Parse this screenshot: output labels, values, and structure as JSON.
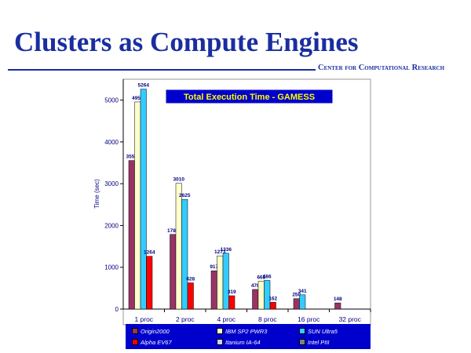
{
  "slide": {
    "title": "Clusters as Compute Engines",
    "org": "Center for Computational Research"
  },
  "chart_data": {
    "type": "bar",
    "title": "Total Execution Time - GAMESS",
    "xlabel": "",
    "ylabel": "Time (sec)",
    "ylim": [
      0,
      5500
    ],
    "yticks": [
      "0",
      "1000",
      "2000",
      "3000",
      "4000",
      "5000"
    ],
    "categories": [
      "1 proc",
      "2 proc",
      "4 proc",
      "8 proc",
      "16 proc",
      "32 proc"
    ],
    "legend_position": "bottom",
    "grid": false,
    "colors": {
      "plot_bg": "#ffffff",
      "title_bg": "#0000cc",
      "title_text": "#ffff00",
      "label_text": "#000080",
      "legend_bg": "#0000cc"
    },
    "series": [
      {
        "name": "Origin2000",
        "color": "#993366",
        "values": [
          3555,
          1787,
          917,
          470,
          250,
          148
        ]
      },
      {
        "name": "IBM SP2 PWR3",
        "color": "#ffffcc",
        "values": [
          4957,
          3010,
          1273,
          668,
          null,
          null
        ]
      },
      {
        "name": "SUN Ultra5",
        "color": "#33ccff",
        "values": [
          5264,
          2625,
          1336,
          686,
          341,
          null
        ]
      },
      {
        "name": "Alpha EV67",
        "color": "#ff0000",
        "values": [
          1264,
          628,
          319,
          162,
          null,
          null
        ]
      },
      {
        "name": "Itanium IA-64",
        "color": "#ccccff",
        "values": [
          null,
          null,
          null,
          null,
          null,
          null
        ]
      },
      {
        "name": "Intel PIII",
        "color": "#808080",
        "values": [
          null,
          null,
          null,
          null,
          null,
          null
        ]
      }
    ]
  }
}
